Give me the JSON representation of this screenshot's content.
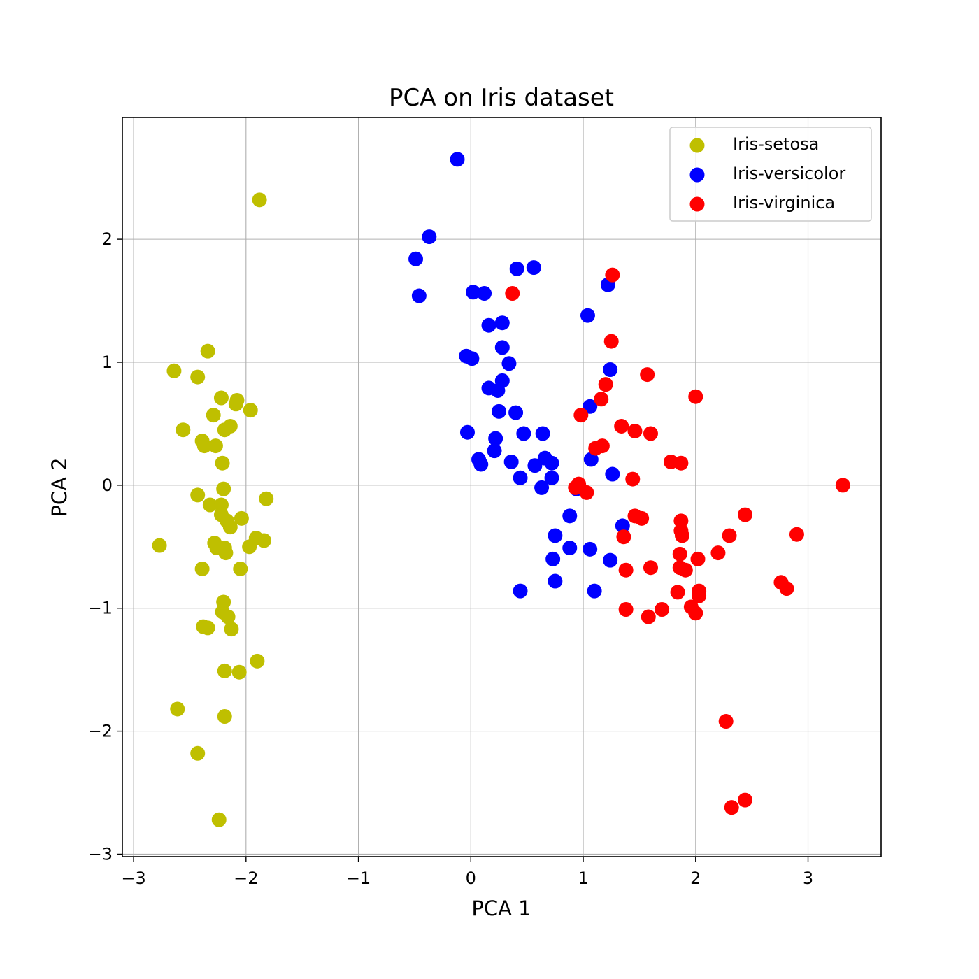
{
  "chart_data": {
    "type": "scatter",
    "title": "PCA on Iris dataset",
    "xlabel": "PCA 1",
    "ylabel": "PCA 2",
    "xlim": [
      -3.1,
      3.65
    ],
    "ylim": [
      -3.02,
      2.99
    ],
    "xticks": [
      -3,
      -2,
      -1,
      0,
      1,
      2,
      3
    ],
    "xtick_labels": [
      "−3",
      "−2",
      "−1",
      "0",
      "1",
      "2",
      "3"
    ],
    "yticks": [
      -3,
      -2,
      -1,
      0,
      1,
      2
    ],
    "ytick_labels": [
      "−3",
      "−2",
      "−1",
      "0",
      "1",
      "2"
    ],
    "grid": true,
    "legend_position": "top-right",
    "series": [
      {
        "name": "Iris-setosa",
        "color": "#bfbf00",
        "points": [
          [
            -1.88,
            2.32
          ],
          [
            -2.34,
            1.09
          ],
          [
            -2.64,
            0.93
          ],
          [
            -2.43,
            0.88
          ],
          [
            -2.22,
            0.71
          ],
          [
            -2.08,
            0.69
          ],
          [
            -2.09,
            0.66
          ],
          [
            -1.96,
            0.61
          ],
          [
            -2.29,
            0.57
          ],
          [
            -2.14,
            0.48
          ],
          [
            -2.19,
            0.45
          ],
          [
            -2.56,
            0.45
          ],
          [
            -2.39,
            0.36
          ],
          [
            -2.37,
            0.32
          ],
          [
            -2.27,
            0.32
          ],
          [
            -2.21,
            0.18
          ],
          [
            -2.2,
            -0.03
          ],
          [
            -2.43,
            -0.08
          ],
          [
            -1.82,
            -0.11
          ],
          [
            -2.32,
            -0.16
          ],
          [
            -2.22,
            -0.16
          ],
          [
            -2.22,
            -0.24
          ],
          [
            -2.17,
            -0.29
          ],
          [
            -2.04,
            -0.27
          ],
          [
            -2.14,
            -0.34
          ],
          [
            -1.91,
            -0.43
          ],
          [
            -1.84,
            -0.45
          ],
          [
            -2.28,
            -0.47
          ],
          [
            -2.26,
            -0.51
          ],
          [
            -2.77,
            -0.49
          ],
          [
            -1.97,
            -0.5
          ],
          [
            -2.19,
            -0.51
          ],
          [
            -2.18,
            -0.55
          ],
          [
            -2.39,
            -0.68
          ],
          [
            -2.05,
            -0.68
          ],
          [
            -2.2,
            -0.95
          ],
          [
            -2.21,
            -1.03
          ],
          [
            -2.16,
            -1.07
          ],
          [
            -2.38,
            -1.15
          ],
          [
            -2.34,
            -1.16
          ],
          [
            -2.13,
            -1.17
          ],
          [
            -1.9,
            -1.43
          ],
          [
            -2.19,
            -1.51
          ],
          [
            -2.06,
            -1.52
          ],
          [
            -2.61,
            -1.82
          ],
          [
            -2.19,
            -1.88
          ],
          [
            -2.43,
            -2.18
          ],
          [
            -2.24,
            -2.72
          ]
        ]
      },
      {
        "name": "Iris-versicolor",
        "color": "#0000ff",
        "points": [
          [
            -0.12,
            2.65
          ],
          [
            -0.37,
            2.02
          ],
          [
            -0.49,
            1.84
          ],
          [
            -0.46,
            1.54
          ],
          [
            0.41,
            1.76
          ],
          [
            0.56,
            1.77
          ],
          [
            0.02,
            1.57
          ],
          [
            0.12,
            1.56
          ],
          [
            0.16,
            1.3
          ],
          [
            0.28,
            1.32
          ],
          [
            1.04,
            1.38
          ],
          [
            1.22,
            1.63
          ],
          [
            0.28,
            1.12
          ],
          [
            0.34,
            0.99
          ],
          [
            -0.04,
            1.05
          ],
          [
            0.01,
            1.03
          ],
          [
            0.28,
            0.85
          ],
          [
            0.16,
            0.79
          ],
          [
            0.24,
            0.77
          ],
          [
            1.24,
            0.94
          ],
          [
            0.25,
            0.6
          ],
          [
            0.4,
            0.59
          ],
          [
            1.06,
            0.64
          ],
          [
            -0.03,
            0.43
          ],
          [
            0.47,
            0.42
          ],
          [
            0.64,
            0.42
          ],
          [
            0.22,
            0.38
          ],
          [
            0.21,
            0.28
          ],
          [
            0.07,
            0.21
          ],
          [
            0.09,
            0.17
          ],
          [
            0.36,
            0.19
          ],
          [
            0.57,
            0.16
          ],
          [
            0.66,
            0.22
          ],
          [
            0.72,
            0.18
          ],
          [
            1.07,
            0.21
          ],
          [
            1.26,
            0.09
          ],
          [
            0.44,
            0.06
          ],
          [
            0.72,
            0.06
          ],
          [
            0.63,
            -0.02
          ],
          [
            0.94,
            -0.03
          ],
          [
            1.35,
            -0.33
          ],
          [
            0.88,
            -0.25
          ],
          [
            0.75,
            -0.41
          ],
          [
            0.88,
            -0.51
          ],
          [
            1.06,
            -0.52
          ],
          [
            0.73,
            -0.6
          ],
          [
            1.24,
            -0.61
          ],
          [
            0.75,
            -0.78
          ],
          [
            0.44,
            -0.86
          ],
          [
            1.1,
            -0.86
          ]
        ]
      },
      {
        "name": "Iris-virginica",
        "color": "#ff0000",
        "points": [
          [
            1.26,
            1.71
          ],
          [
            0.37,
            1.56
          ],
          [
            1.25,
            1.17
          ],
          [
            1.57,
            0.9
          ],
          [
            1.2,
            0.82
          ],
          [
            2.0,
            0.72
          ],
          [
            1.16,
            0.7
          ],
          [
            0.98,
            0.57
          ],
          [
            1.34,
            0.48
          ],
          [
            1.46,
            0.44
          ],
          [
            1.6,
            0.42
          ],
          [
            1.17,
            0.32
          ],
          [
            1.11,
            0.3
          ],
          [
            1.78,
            0.19
          ],
          [
            1.87,
            0.18
          ],
          [
            1.44,
            0.05
          ],
          [
            3.31,
            0.0
          ],
          [
            0.96,
            0.01
          ],
          [
            0.93,
            -0.02
          ],
          [
            1.03,
            -0.06
          ],
          [
            1.46,
            -0.25
          ],
          [
            1.52,
            -0.27
          ],
          [
            1.87,
            -0.29
          ],
          [
            2.44,
            -0.24
          ],
          [
            1.87,
            -0.37
          ],
          [
            1.88,
            -0.41
          ],
          [
            1.36,
            -0.42
          ],
          [
            2.3,
            -0.41
          ],
          [
            2.9,
            -0.4
          ],
          [
            2.2,
            -0.55
          ],
          [
            1.86,
            -0.56
          ],
          [
            2.02,
            -0.6
          ],
          [
            1.6,
            -0.67
          ],
          [
            1.86,
            -0.67
          ],
          [
            1.91,
            -0.69
          ],
          [
            1.38,
            -0.69
          ],
          [
            2.76,
            -0.79
          ],
          [
            2.81,
            -0.84
          ],
          [
            2.03,
            -0.86
          ],
          [
            1.84,
            -0.87
          ],
          [
            2.03,
            -0.9
          ],
          [
            1.96,
            -0.99
          ],
          [
            1.7,
            -1.01
          ],
          [
            1.38,
            -1.01
          ],
          [
            2.0,
            -1.04
          ],
          [
            1.58,
            -1.07
          ],
          [
            2.27,
            -1.92
          ],
          [
            2.44,
            -2.56
          ],
          [
            2.32,
            -2.62
          ]
        ]
      }
    ]
  }
}
